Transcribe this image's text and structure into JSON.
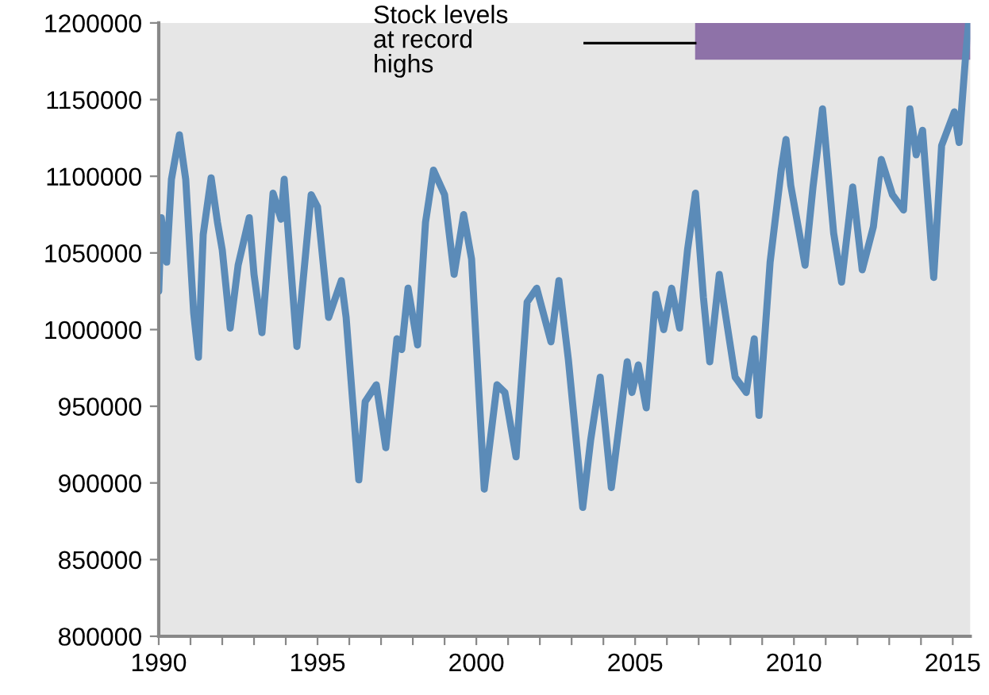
{
  "chart_data": {
    "type": "line",
    "annotations": [
      "Stock levels\nat record\nhighs"
    ],
    "x": [
      1990.0,
      1990.08,
      1990.25,
      1990.4,
      1990.65,
      1990.85,
      1991.1,
      1991.25,
      1991.4,
      1991.65,
      1991.85,
      1992.0,
      1992.25,
      1992.5,
      1992.85,
      1993.0,
      1993.25,
      1993.6,
      1993.85,
      1993.95,
      1994.35,
      1994.8,
      1995.0,
      1995.35,
      1995.75,
      1995.9,
      1996.3,
      1996.5,
      1996.85,
      1997.15,
      1997.5,
      1997.65,
      1997.85,
      1998.15,
      1998.4,
      1998.65,
      1999.0,
      1999.3,
      1999.6,
      1999.85,
      2000.25,
      2000.65,
      2000.9,
      2001.25,
      2001.6,
      2001.9,
      2002.35,
      2002.6,
      2002.9,
      2003.35,
      2003.6,
      2003.9,
      2004.25,
      2004.75,
      2004.9,
      2005.1,
      2005.35,
      2005.65,
      2005.9,
      2006.15,
      2006.4,
      2006.65,
      2006.9,
      2007.15,
      2007.35,
      2007.65,
      2008.15,
      2008.5,
      2008.75,
      2008.9,
      2009.25,
      2009.6,
      2009.75,
      2009.9,
      2010.35,
      2010.6,
      2010.9,
      2011.25,
      2011.5,
      2011.85,
      2012.15,
      2012.5,
      2012.75,
      2013.1,
      2013.45,
      2013.65,
      2013.85,
      2014.05,
      2014.4,
      2014.65,
      2015.05,
      2015.2,
      2015.4,
      2015.5
    ],
    "series": [
      {
        "color": "#5b8bb8",
        "values": [
          1025000,
          1073000,
          1044000,
          1098000,
          1127000,
          1098000,
          1011000,
          982000,
          1062000,
          1099000,
          1070000,
          1052000,
          1001000,
          1042000,
          1073000,
          1036000,
          998000,
          1089000,
          1072000,
          1098000,
          989000,
          1088000,
          1080000,
          1008000,
          1032000,
          1008000,
          902000,
          953000,
          964000,
          923000,
          994000,
          987000,
          1027000,
          990000,
          1070000,
          1104000,
          1088000,
          1036000,
          1075000,
          1046000,
          896000,
          964000,
          959000,
          917000,
          1018000,
          1027000,
          992000,
          1032000,
          980000,
          884000,
          928000,
          969000,
          897000,
          979000,
          959000,
          977000,
          949000,
          1023000,
          1000000,
          1027000,
          1001000,
          1052000,
          1089000,
          1021000,
          979000,
          1036000,
          969000,
          959000,
          994000,
          944000,
          1044000,
          1104000,
          1124000,
          1094000,
          1042000,
          1093000,
          1144000,
          1063000,
          1031000,
          1093000,
          1039000,
          1067000,
          1111000,
          1088000,
          1078000,
          1144000,
          1114000,
          1130000,
          1034000,
          1120000,
          1142000,
          1122000,
          1177000,
          1200000
        ]
      }
    ],
    "xlim": [
      1990,
      2015.55
    ],
    "ylim": [
      800000,
      1200000
    ],
    "xticks": [
      1990,
      {
        "value": 1991,
        "label": null
      },
      {
        "value": 1992,
        "label": null
      },
      {
        "value": 1993,
        "label": null
      },
      {
        "value": 1994,
        "label": null
      },
      1995,
      {
        "value": 1996,
        "label": null
      },
      {
        "value": 1997,
        "label": null
      },
      {
        "value": 1998,
        "label": null
      },
      {
        "value": 1999,
        "label": null
      },
      2000,
      {
        "value": 2001,
        "label": null
      },
      {
        "value": 2002,
        "label": null
      },
      {
        "value": 2003,
        "label": null
      },
      {
        "value": 2004,
        "label": null
      },
      2005,
      {
        "value": 2006,
        "label": null
      },
      {
        "value": 2007,
        "label": null
      },
      {
        "value": 2008,
        "label": null
      },
      {
        "value": 2009,
        "label": null
      },
      2010,
      {
        "value": 2011,
        "label": null
      },
      {
        "value": 2012,
        "label": null
      },
      {
        "value": 2013,
        "label": null
      },
      {
        "value": 2014,
        "label": null
      },
      2015
    ],
    "yticks": [
      800000,
      850000,
      900000,
      950000,
      1000000,
      1050000,
      1100000,
      1150000,
      1200000
    ],
    "marker": "none",
    "line_style": "solid"
  }
}
